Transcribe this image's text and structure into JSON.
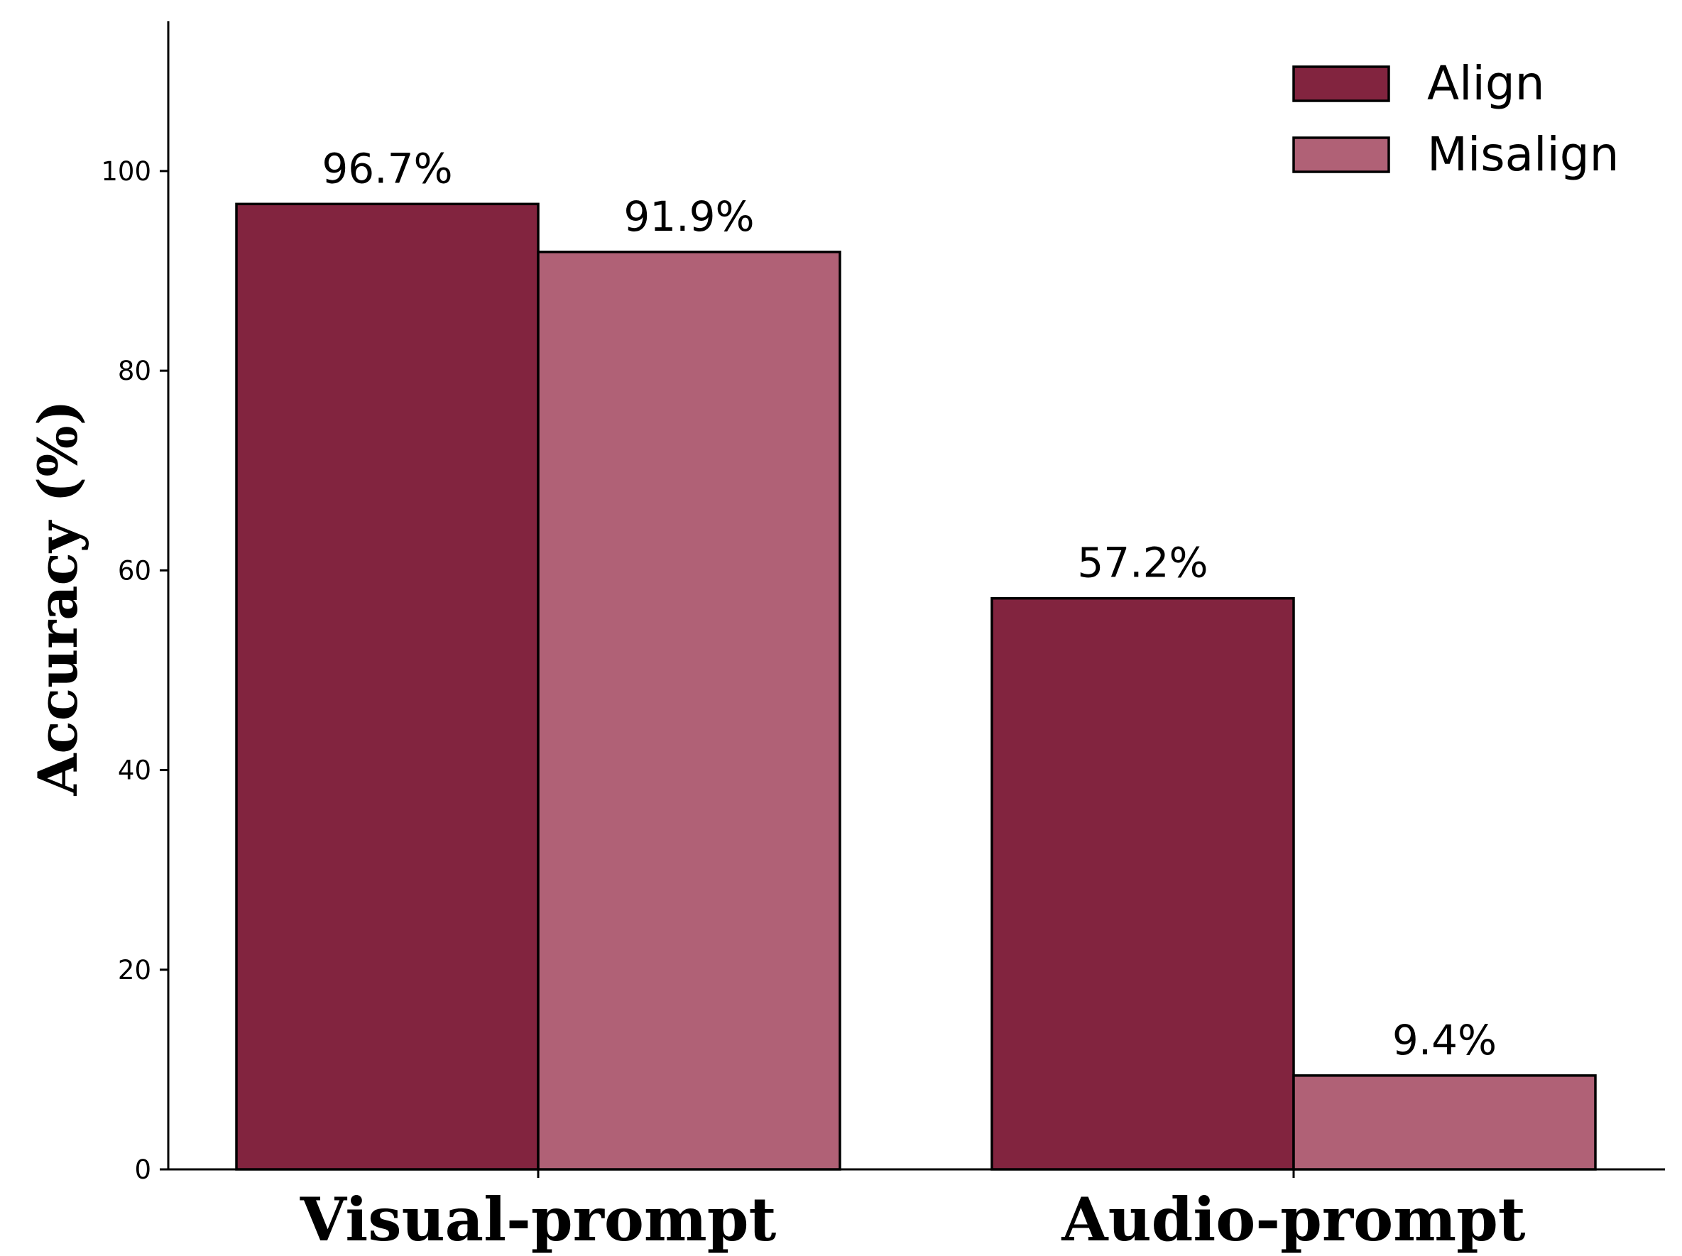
{
  "chart_data": {
    "type": "bar",
    "categories": [
      "Visual-prompt",
      "Audio-prompt"
    ],
    "series": [
      {
        "name": "Align",
        "values": [
          96.7,
          57.2
        ],
        "labels": [
          "96.7%",
          "57.2%"
        ],
        "color": "#82243f"
      },
      {
        "name": "Misalign",
        "values": [
          91.9,
          9.4
        ],
        "labels": [
          "91.9%",
          "9.4%"
        ],
        "color": "#b06176"
      }
    ],
    "ylabel": "Accuracy (%)",
    "ylim": [
      0,
      115
    ],
    "yticks": [
      0,
      20,
      40,
      60,
      80,
      100
    ],
    "ytick_labels": [
      "0",
      "20",
      "40",
      "60",
      "80",
      "100"
    ],
    "grid": false,
    "legend_position": "top-right",
    "edge_color": "#000000"
  }
}
